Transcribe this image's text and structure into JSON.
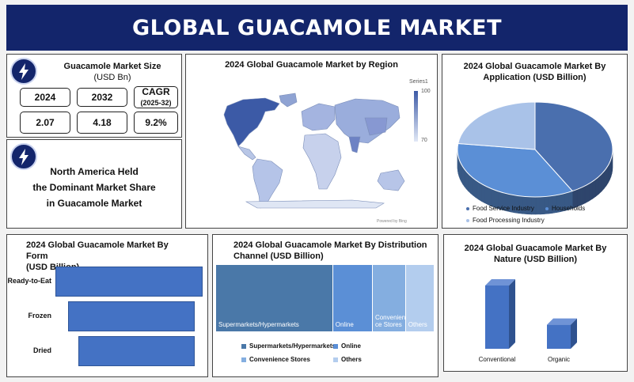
{
  "header": {
    "title": "GLOBAL GUACAMOLE MARKET"
  },
  "size_panel": {
    "title_line1": "Guacamole Market Size",
    "title_line2": "(USD Bn)",
    "col_2024": "2024",
    "col_2032": "2032",
    "col_cagr": "CAGR",
    "col_cagr_sub": "(2025-32)",
    "val_2024": "2.07",
    "val_2032": "4.18",
    "val_cagr": "9.2%"
  },
  "statement_panel": {
    "line1": "North America Held",
    "line2": "the Dominant Market Share",
    "line3": "in Guacamole Market"
  },
  "icons": {
    "bolt": "lightning-bolt-icon"
  },
  "chart_data": [
    {
      "type": "map",
      "title": "2024 Global Guacamole Market by Region",
      "legend_title": "Series1",
      "scale_max": "100",
      "scale_min": "70",
      "credit": "Powered by Bing"
    },
    {
      "type": "pie",
      "title_line1": "2024 Global Guacamole Market By",
      "title_line2": "Application (USD Billion)",
      "categories": [
        "Food Service Industry",
        "Households",
        "Food Processing Industry"
      ],
      "values": [
        42,
        35,
        23
      ],
      "colors": [
        "#4a6fae",
        "#5b8fd6",
        "#a9c2e8"
      ]
    },
    {
      "type": "bar",
      "orientation": "horizontal",
      "title_line1": "2024 Global Guacamole Market By Form",
      "title_line2": "(USD Billion)",
      "categories": [
        "Ready-to-Eat",
        "Frozen",
        "Dried"
      ],
      "values": [
        1.0,
        0.86,
        0.79
      ]
    },
    {
      "type": "treemap",
      "title_line1": "2024 Global Guacamole Market By Distribution",
      "title_line2": "Channel (USD Billion)",
      "categories": [
        "Supermarkets/Hypermarkets",
        "Online",
        "Convenience Stores",
        "Others"
      ],
      "tile_labels": [
        "Supermarkets/Hypermarkets",
        "Online",
        "Convenien ce Stores",
        "Others"
      ],
      "values": [
        53,
        18,
        15,
        13
      ],
      "colors": [
        "#4a78a8",
        "#5b8fd6",
        "#84aee0",
        "#b3cdee"
      ]
    },
    {
      "type": "bar",
      "title_line1": "2024 Global Guacamole Market By",
      "title_line2": "Nature (USD Billion)",
      "categories": [
        "Conventional",
        "Organic"
      ],
      "values": [
        1.0,
        0.38
      ]
    }
  ]
}
